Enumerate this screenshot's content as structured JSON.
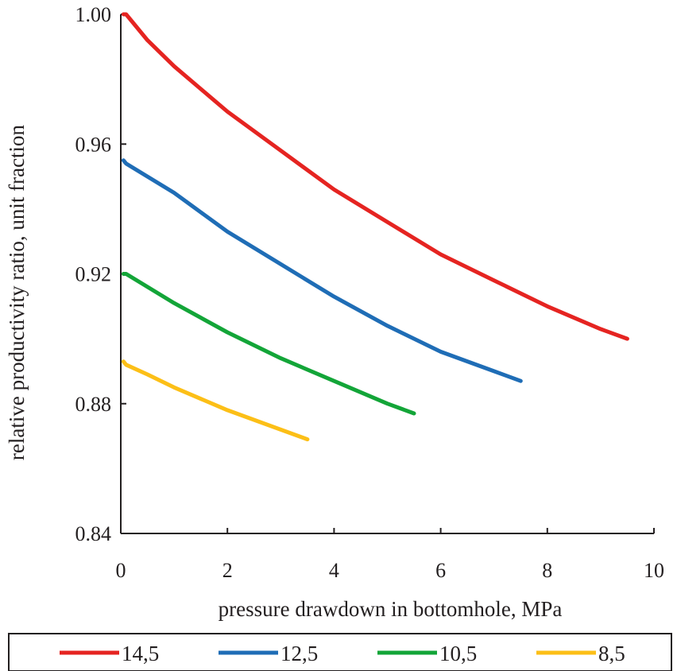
{
  "chart_data": {
    "type": "line",
    "title": "",
    "xlabel": "pressure drawdown in bottomhole, MPa",
    "ylabel": "relative productivity ratio, unit fraction",
    "xlim": [
      0,
      10
    ],
    "ylim": [
      0.84,
      1.0
    ],
    "xticks": [
      0,
      2,
      4,
      6,
      8,
      10
    ],
    "xtick_labels": [
      "0",
      "2",
      "4",
      "6",
      "8",
      "10"
    ],
    "yticks": [
      0.84,
      0.88,
      0.92,
      0.96,
      1.0
    ],
    "ytick_labels": [
      "0.84",
      "0.88",
      "0.92",
      "0.96",
      "1.00"
    ],
    "grid": false,
    "legend_position": "bottom",
    "series": [
      {
        "name": "14,5",
        "color": "#e52421",
        "x": [
          0.05,
          0.1,
          0.5,
          1,
          2,
          3,
          4,
          5,
          6,
          7,
          8,
          9,
          9.5
        ],
        "y": [
          1.0,
          1.0,
          0.992,
          0.984,
          0.97,
          0.958,
          0.946,
          0.936,
          0.926,
          0.918,
          0.91,
          0.903,
          0.9
        ]
      },
      {
        "name": "12,5",
        "color": "#1f6db6",
        "x": [
          0.05,
          0.1,
          1,
          2,
          3,
          4,
          5,
          6,
          7,
          7.5
        ],
        "y": [
          0.955,
          0.954,
          0.945,
          0.933,
          0.923,
          0.913,
          0.904,
          0.896,
          0.89,
          0.887
        ]
      },
      {
        "name": "10,5",
        "color": "#13a538",
        "x": [
          0.05,
          0.1,
          1,
          2,
          3,
          4,
          5,
          5.5
        ],
        "y": [
          0.92,
          0.92,
          0.911,
          0.902,
          0.894,
          0.887,
          0.88,
          0.877
        ]
      },
      {
        "name": "8,5",
        "color": "#fcbf17",
        "x": [
          0.05,
          0.1,
          0.5,
          1,
          2,
          3,
          3.5
        ],
        "y": [
          0.893,
          0.892,
          0.889,
          0.885,
          0.878,
          0.872,
          0.869
        ]
      }
    ]
  }
}
